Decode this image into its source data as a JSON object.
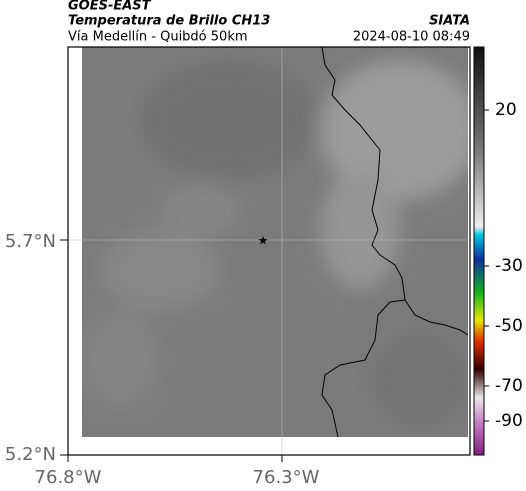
{
  "header": {
    "source": "GOES-EAST",
    "title": "Temperatura de Brillo CH13",
    "subtitle": "Vía Medellín - Quibdó 50km",
    "agency": "SIATA",
    "timestamp": "2024-08-10 08:49"
  },
  "map": {
    "lat_labels": [
      "5.7°N",
      "5.2°N"
    ],
    "lon_labels": [
      "76.8°W",
      "76.3°W"
    ]
  },
  "colorbar": {
    "labels": [
      "20",
      "-30",
      "-50",
      "-70",
      "-90"
    ]
  }
}
